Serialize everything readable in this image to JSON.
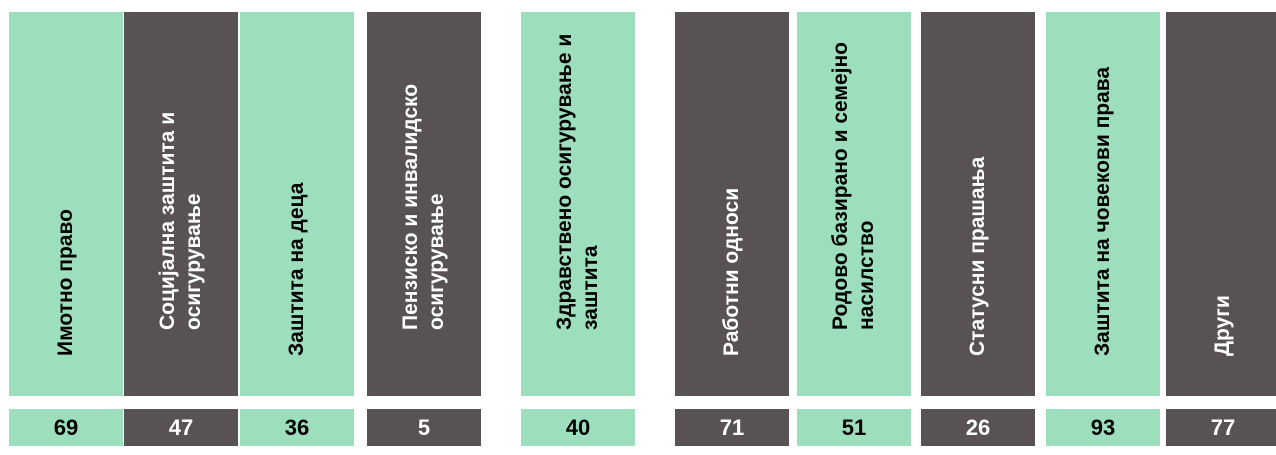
{
  "colors": {
    "light_fill": "#9ddfbd",
    "dark_fill": "#585352",
    "light_text": "#000000",
    "dark_text": "#ffffff"
  },
  "chart_data": {
    "type": "table",
    "categories": [
      "Имотно право",
      "Социјална заштита и осигурување",
      "Заштита на деца",
      "Пензиско и инвалидско осигурување",
      "Здравствено осигурување и заштита",
      "Работни односи",
      "Родово базирано и семејно насилство",
      "Статусни прашања",
      "Заштита на човекови права",
      "Други"
    ],
    "values": [
      69,
      47,
      36,
      5,
      40,
      71,
      51,
      26,
      93,
      77
    ]
  }
}
